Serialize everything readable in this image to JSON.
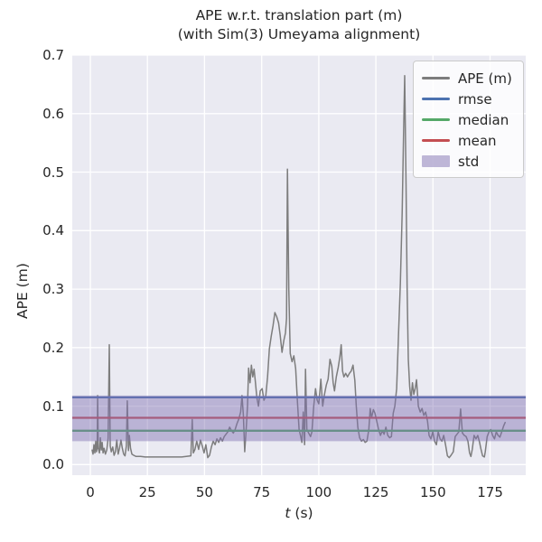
{
  "figure": {
    "title_line1": "APE w.r.t. translation part (m)",
    "title_line2": "(with Sim(3) Umeyama alignment)",
    "background": "#ffffff",
    "axes_background": "#eaeaf2",
    "grid_color": "#ffffff",
    "text_color": "#262626"
  },
  "axis": {
    "xlabel_var": "t",
    "xlabel_unit": " (s)",
    "ylabel": "APE (m)",
    "x_tick_labels": [
      "0",
      "25",
      "50",
      "75",
      "100",
      "125",
      "150",
      "175"
    ],
    "y_tick_labels": [
      "0.0",
      "0.1",
      "0.2",
      "0.3",
      "0.4",
      "0.5",
      "0.6",
      "0.7"
    ]
  },
  "legend": {
    "items": [
      {
        "label": "APE (m)",
        "swatch": "line",
        "color": "#7d7d7d"
      },
      {
        "label": "rmse",
        "swatch": "line",
        "color": "#4c72b0"
      },
      {
        "label": "median",
        "swatch": "line",
        "color": "#55a868"
      },
      {
        "label": "mean",
        "swatch": "line",
        "color": "#c44e52"
      },
      {
        "label": "std",
        "swatch": "patch",
        "color": "#8172b2"
      }
    ]
  },
  "stats": {
    "rmse": 0.115,
    "mean": 0.08,
    "median": 0.058,
    "std_band_low": 0.04,
    "std_band_high": 0.118
  },
  "chart_data": {
    "type": "line",
    "title": "APE w.r.t. translation part (m)\n(with Sim(3) Umeyama alignment)",
    "xlabel": "t (s)",
    "ylabel": "APE (m)",
    "xlim": [
      -7.9,
      190.6
    ],
    "ylim": [
      -0.018,
      0.7
    ],
    "x_ticks": [
      0,
      25,
      50,
      75,
      100,
      125,
      150,
      175
    ],
    "y_ticks": [
      0.0,
      0.1,
      0.2,
      0.3,
      0.4,
      0.5,
      0.6,
      0.7
    ],
    "grid": true,
    "legend_position": "upper right",
    "series": [
      {
        "name": "APE (m)",
        "type": "line",
        "color": "#7d7d7d",
        "x": [
          0.8,
          1.2,
          1.6,
          2.0,
          2.4,
          2.7,
          3.0,
          3.2,
          3.5,
          4.0,
          4.4,
          4.8,
          5.2,
          5.6,
          6.0,
          6.6,
          7.2,
          7.8,
          8.3,
          8.7,
          9.2,
          9.8,
          10.4,
          11.0,
          11.6,
          12.2,
          12.8,
          13.4,
          14.0,
          14.6,
          15.2,
          15.8,
          16.2,
          16.7,
          17.1,
          17.6,
          18.2,
          19.0,
          20.0,
          22.0,
          24.0,
          26.0,
          28.0,
          30.0,
          32.0,
          34.0,
          36.0,
          38.0,
          40.0,
          42.0,
          44.0,
          44.6,
          45.1,
          45.8,
          46.6,
          47.4,
          48.2,
          49.0,
          49.8,
          50.6,
          51.4,
          52.2,
          53.0,
          53.8,
          54.6,
          55.4,
          56.2,
          57.0,
          57.8,
          58.6,
          59.4,
          60.2,
          61.0,
          61.8,
          62.6,
          63.4,
          64.2,
          65.0,
          65.8,
          66.4,
          67.0,
          67.6,
          68.2,
          68.8,
          69.3,
          69.9,
          70.5,
          71.1,
          71.7,
          72.3,
          72.9,
          73.6,
          74.4,
          75.2,
          76.0,
          76.8,
          77.6,
          78.4,
          79.2,
          80.0,
          80.8,
          81.6,
          82.4,
          83.1,
          83.9,
          84.7,
          85.4,
          85.9,
          86.3,
          86.9,
          87.5,
          88.3,
          89.1,
          89.9,
          90.7,
          91.4,
          92.0,
          92.6,
          93.2,
          93.8,
          94.2,
          94.8,
          95.6,
          96.4,
          97.0,
          97.8,
          98.6,
          99.3,
          100.0,
          100.9,
          101.7,
          102.5,
          103.3,
          104.1,
          104.9,
          105.7,
          106.3,
          106.9,
          107.7,
          108.5,
          109.3,
          109.8,
          110.4,
          111.0,
          111.8,
          112.6,
          113.4,
          114.2,
          115.0,
          115.8,
          116.4,
          117.1,
          117.9,
          118.7,
          119.5,
          120.3,
          121.1,
          121.9,
          122.5,
          123.1,
          123.9,
          124.6,
          125.4,
          126.2,
          127.0,
          127.8,
          128.6,
          129.4,
          130.2,
          131.0,
          131.8,
          132.6,
          133.3,
          134.1,
          134.9,
          135.7,
          136.5,
          137.1,
          137.6,
          138.2,
          138.7,
          139.2,
          139.8,
          140.4,
          141.0,
          141.6,
          142.2,
          142.8,
          143.6,
          144.4,
          145.2,
          146.0,
          146.8,
          147.6,
          148.3,
          149.1,
          149.9,
          150.7,
          151.5,
          152.3,
          153.1,
          153.9,
          154.7,
          155.5,
          156.3,
          157.1,
          157.9,
          158.9,
          159.7,
          160.5,
          161.3,
          162.1,
          162.9,
          163.7,
          164.5,
          165.3,
          166.0,
          166.6,
          167.2,
          168.0,
          168.8,
          169.6,
          170.4,
          170.9,
          171.7,
          172.5,
          172.9,
          173.7,
          174.5,
          175.3,
          176.1,
          176.9,
          177.7,
          178.5,
          179.3,
          180.1,
          180.9,
          181.6
        ],
        "y": [
          0.025,
          0.018,
          0.034,
          0.02,
          0.04,
          0.022,
          0.03,
          0.118,
          0.028,
          0.02,
          0.046,
          0.025,
          0.038,
          0.02,
          0.028,
          0.018,
          0.025,
          0.045,
          0.205,
          0.032,
          0.022,
          0.03,
          0.016,
          0.022,
          0.042,
          0.018,
          0.028,
          0.042,
          0.028,
          0.018,
          0.015,
          0.032,
          0.109,
          0.024,
          0.05,
          0.028,
          0.018,
          0.016,
          0.014,
          0.014,
          0.013,
          0.013,
          0.013,
          0.013,
          0.013,
          0.013,
          0.013,
          0.013,
          0.013,
          0.014,
          0.015,
          0.077,
          0.02,
          0.026,
          0.04,
          0.026,
          0.042,
          0.032,
          0.02,
          0.034,
          0.012,
          0.016,
          0.03,
          0.04,
          0.034,
          0.044,
          0.038,
          0.046,
          0.04,
          0.048,
          0.052,
          0.056,
          0.064,
          0.058,
          0.054,
          0.06,
          0.07,
          0.078,
          0.09,
          0.118,
          0.085,
          0.022,
          0.06,
          0.1,
          0.165,
          0.14,
          0.17,
          0.15,
          0.163,
          0.14,
          0.115,
          0.1,
          0.126,
          0.13,
          0.11,
          0.117,
          0.15,
          0.198,
          0.22,
          0.238,
          0.26,
          0.253,
          0.242,
          0.222,
          0.192,
          0.212,
          0.225,
          0.25,
          0.505,
          0.3,
          0.19,
          0.176,
          0.186,
          0.164,
          0.104,
          0.06,
          0.05,
          0.038,
          0.09,
          0.034,
          0.163,
          0.06,
          0.054,
          0.048,
          0.056,
          0.1,
          0.13,
          0.11,
          0.104,
          0.146,
          0.1,
          0.12,
          0.136,
          0.146,
          0.18,
          0.168,
          0.14,
          0.126,
          0.15,
          0.166,
          0.186,
          0.205,
          0.16,
          0.15,
          0.156,
          0.15,
          0.156,
          0.16,
          0.17,
          0.144,
          0.1,
          0.064,
          0.046,
          0.04,
          0.043,
          0.038,
          0.04,
          0.06,
          0.096,
          0.08,
          0.094,
          0.088,
          0.074,
          0.06,
          0.05,
          0.058,
          0.052,
          0.064,
          0.05,
          0.046,
          0.048,
          0.088,
          0.1,
          0.13,
          0.22,
          0.31,
          0.43,
          0.56,
          0.665,
          0.48,
          0.3,
          0.18,
          0.134,
          0.11,
          0.14,
          0.12,
          0.13,
          0.145,
          0.1,
          0.09,
          0.096,
          0.084,
          0.09,
          0.074,
          0.05,
          0.044,
          0.056,
          0.04,
          0.034,
          0.056,
          0.044,
          0.04,
          0.05,
          0.034,
          0.015,
          0.012,
          0.016,
          0.022,
          0.048,
          0.052,
          0.056,
          0.095,
          0.054,
          0.05,
          0.048,
          0.04,
          0.02,
          0.014,
          0.026,
          0.05,
          0.044,
          0.05,
          0.038,
          0.028,
          0.015,
          0.013,
          0.022,
          0.048,
          0.056,
          0.06,
          0.05,
          0.044,
          0.056,
          0.05,
          0.047,
          0.056,
          0.066,
          0.072
        ]
      },
      {
        "name": "rmse",
        "type": "hline",
        "color": "#4c72b0",
        "y": 0.115
      },
      {
        "name": "median",
        "type": "hline",
        "color": "#55a868",
        "y": 0.058
      },
      {
        "name": "mean",
        "type": "hline",
        "color": "#c44e52",
        "y": 0.08
      },
      {
        "name": "std",
        "type": "hband",
        "color": "#8172b2",
        "y": [
          0.04,
          0.118
        ]
      }
    ]
  }
}
